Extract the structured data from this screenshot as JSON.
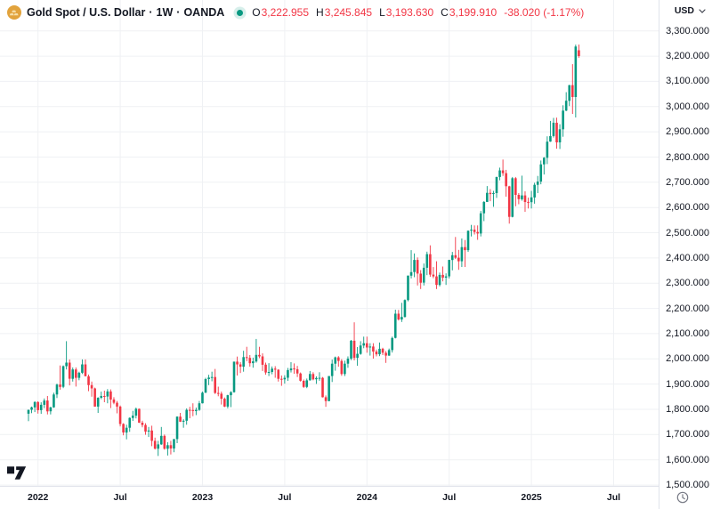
{
  "header": {
    "symbol_title": "Gold Spot / U.S. Dollar",
    "separator": "·",
    "interval": "1W",
    "exchange": "OANDA",
    "ohlc": {
      "open_label": "O",
      "open": "3,222.955",
      "high_label": "H",
      "high": "3,245.845",
      "low_label": "L",
      "low": "3,193.630",
      "close_label": "C",
      "close": "3,199.910",
      "change": "-38.020 (-1.17%)"
    }
  },
  "price_axis": {
    "currency": "USD",
    "labels": [
      "3,300.000",
      "3,200.000",
      "3,100.000",
      "3,000.000",
      "2,900.000",
      "2,800.000",
      "2,700.000",
      "2,600.000",
      "2,500.000",
      "2,400.000",
      "2,300.000",
      "2,200.000",
      "2,100.000",
      "2,000.000",
      "1,900.000",
      "1,800.000",
      "1,700.000",
      "1,600.000",
      "1,500.000"
    ]
  },
  "time_axis": {
    "ticks": [
      {
        "label": "2022",
        "week": 3
      },
      {
        "label": "Jul",
        "week": 29
      },
      {
        "label": "2023",
        "week": 55
      },
      {
        "label": "Jul",
        "week": 81
      },
      {
        "label": "2024",
        "week": 107
      },
      {
        "label": "Jul",
        "week": 133
      },
      {
        "label": "2025",
        "week": 159
      },
      {
        "label": "Jul",
        "week": 185
      }
    ]
  },
  "colors": {
    "up": "#089981",
    "down": "#F23645",
    "grid": "#eff1f4",
    "axis_line": "#e0e3eb",
    "axis_text": "#131722",
    "negative_text": "#F23645",
    "symbol_icon_gold": "#E2A33C",
    "status_open": "#089981"
  },
  "chart_data": {
    "type": "candlestick",
    "title": "Gold Spot / U.S. Dollar · 1W · OANDA",
    "interval": "1W",
    "x_axis_tick_labels": [
      "2022",
      "Jul",
      "2023",
      "Jul",
      "2024",
      "Jul",
      "2025",
      "Jul"
    ],
    "y_axis_range": [
      1500,
      3300
    ],
    "y_grid_step": 100,
    "first_candle_week": "mid-Dec 2021",
    "last_candle": {
      "open": 3222.955,
      "high": 3245.845,
      "low": 3193.63,
      "close": 3199.91,
      "change": -38.02,
      "change_pct": -1.17
    },
    "candles": [
      [
        1783,
        1799,
        1753,
        1798
      ],
      [
        1798,
        1811,
        1785,
        1808
      ],
      [
        1808,
        1832,
        1789,
        1829
      ],
      [
        1829,
        1832,
        1783,
        1797
      ],
      [
        1797,
        1828,
        1782,
        1818
      ],
      [
        1818,
        1843,
        1805,
        1835
      ],
      [
        1835,
        1853,
        1780,
        1792
      ],
      [
        1792,
        1810,
        1780,
        1808
      ],
      [
        1808,
        1866,
        1806,
        1859
      ],
      [
        1859,
        1902,
        1845,
        1898
      ],
      [
        1898,
        1974,
        1878,
        1889
      ],
      [
        1889,
        1974,
        1884,
        1971
      ],
      [
        1971,
        2070,
        1958,
        1985
      ],
      [
        1985,
        1998,
        1895,
        1921
      ],
      [
        1921,
        1966,
        1910,
        1958
      ],
      [
        1958,
        1966,
        1890,
        1925
      ],
      [
        1925,
        1949,
        1915,
        1945
      ],
      [
        1945,
        1998,
        1940,
        1978
      ],
      [
        1978,
        1998,
        1931,
        1931
      ],
      [
        1931,
        1938,
        1872,
        1896
      ],
      [
        1896,
        1910,
        1850,
        1883
      ],
      [
        1883,
        1886,
        1810,
        1811
      ],
      [
        1811,
        1848,
        1786,
        1846
      ],
      [
        1846,
        1870,
        1840,
        1853
      ],
      [
        1853,
        1874,
        1828,
        1851
      ],
      [
        1851,
        1880,
        1824,
        1871
      ],
      [
        1871,
        1879,
        1805,
        1839
      ],
      [
        1839,
        1848,
        1820,
        1826
      ],
      [
        1826,
        1833,
        1784,
        1811
      ],
      [
        1811,
        1815,
        1732,
        1742
      ],
      [
        1742,
        1745,
        1697,
        1708
      ],
      [
        1708,
        1739,
        1681,
        1727
      ],
      [
        1727,
        1768,
        1711,
        1766
      ],
      [
        1766,
        1794,
        1754,
        1775
      ],
      [
        1775,
        1807,
        1764,
        1802
      ],
      [
        1802,
        1803,
        1746,
        1747
      ],
      [
        1747,
        1755,
        1729,
        1738
      ],
      [
        1738,
        1745,
        1699,
        1712
      ],
      [
        1712,
        1730,
        1690,
        1716
      ],
      [
        1716,
        1735,
        1654,
        1675
      ],
      [
        1675,
        1688,
        1641,
        1644
      ],
      [
        1644,
        1675,
        1615,
        1661
      ],
      [
        1661,
        1730,
        1659,
        1695
      ],
      [
        1695,
        1700,
        1640,
        1644
      ],
      [
        1644,
        1670,
        1617,
        1658
      ],
      [
        1658,
        1675,
        1621,
        1645
      ],
      [
        1645,
        1683,
        1630,
        1682
      ],
      [
        1682,
        1772,
        1666,
        1771
      ],
      [
        1771,
        1786,
        1750,
        1751
      ],
      [
        1751,
        1761,
        1727,
        1755
      ],
      [
        1755,
        1804,
        1739,
        1798
      ],
      [
        1798,
        1810,
        1765,
        1797
      ],
      [
        1797,
        1824,
        1773,
        1793
      ],
      [
        1793,
        1807,
        1777,
        1798
      ],
      [
        1798,
        1833,
        1794,
        1824
      ],
      [
        1824,
        1870,
        1823,
        1866
      ],
      [
        1866,
        1925,
        1865,
        1920
      ],
      [
        1920,
        1937,
        1896,
        1926
      ],
      [
        1926,
        1949,
        1911,
        1928
      ],
      [
        1928,
        1960,
        1861,
        1865
      ],
      [
        1865,
        1890,
        1852,
        1862
      ],
      [
        1862,
        1870,
        1819,
        1842
      ],
      [
        1842,
        1847,
        1809,
        1811
      ],
      [
        1811,
        1858,
        1804,
        1856
      ],
      [
        1856,
        1872,
        1809,
        1868
      ],
      [
        1868,
        1989,
        1866,
        1989
      ],
      [
        1989,
        2009,
        1934,
        1978
      ],
      [
        1978,
        1987,
        1944,
        1969
      ],
      [
        1969,
        2032,
        1949,
        2007
      ],
      [
        2007,
        2048,
        1991,
        2004
      ],
      [
        2004,
        2015,
        1969,
        1983
      ],
      [
        1983,
        2005,
        1965,
        1990
      ],
      [
        1990,
        2079,
        1985,
        2016
      ],
      [
        2016,
        2048,
        2003,
        2010
      ],
      [
        2010,
        2022,
        1952,
        1977
      ],
      [
        1977,
        1985,
        1937,
        1946
      ],
      [
        1946,
        1983,
        1932,
        1948
      ],
      [
        1948,
        1970,
        1939,
        1961
      ],
      [
        1961,
        1971,
        1925,
        1957
      ],
      [
        1957,
        1959,
        1910,
        1921
      ],
      [
        1921,
        1934,
        1893,
        1919
      ],
      [
        1919,
        1935,
        1902,
        1925
      ],
      [
        1925,
        1964,
        1913,
        1955
      ],
      [
        1955,
        1987,
        1946,
        1962
      ],
      [
        1962,
        1982,
        1941,
        1959
      ],
      [
        1959,
        1972,
        1928,
        1942
      ],
      [
        1942,
        1946,
        1910,
        1913
      ],
      [
        1913,
        1918,
        1885,
        1889
      ],
      [
        1889,
        1922,
        1884,
        1915
      ],
      [
        1915,
        1952,
        1914,
        1940
      ],
      [
        1940,
        1947,
        1915,
        1919
      ],
      [
        1919,
        1931,
        1901,
        1924
      ],
      [
        1924,
        1947,
        1913,
        1925
      ],
      [
        1925,
        1928,
        1847,
        1848
      ],
      [
        1848,
        1855,
        1810,
        1833
      ],
      [
        1833,
        1932,
        1832,
        1932
      ],
      [
        1932,
        1997,
        1908,
        1981
      ],
      [
        1981,
        2009,
        1953,
        2006
      ],
      [
        2006,
        2011,
        1969,
        1992
      ],
      [
        1992,
        1999,
        1933,
        1940
      ],
      [
        1940,
        1993,
        1932,
        1981
      ],
      [
        1981,
        2010,
        1965,
        2001
      ],
      [
        2001,
        2075,
        1995,
        2072
      ],
      [
        2072,
        2145,
        1994,
        2004
      ],
      [
        2004,
        2047,
        1973,
        2020
      ],
      [
        2020,
        2070,
        2016,
        2053
      ],
      [
        2053,
        2088,
        2042,
        2062
      ],
      [
        2062,
        2088,
        2024,
        2045
      ],
      [
        2045,
        2062,
        2013,
        2049
      ],
      [
        2049,
        2062,
        2001,
        2029
      ],
      [
        2029,
        2037,
        2010,
        2018
      ],
      [
        2018,
        2065,
        2011,
        2040
      ],
      [
        2040,
        2044,
        2015,
        2024
      ],
      [
        2024,
        2031,
        1984,
        2013
      ],
      [
        2013,
        2041,
        2012,
        2035
      ],
      [
        2035,
        2088,
        2025,
        2083
      ],
      [
        2083,
        2195,
        2081,
        2179
      ],
      [
        2179,
        2194,
        2152,
        2156
      ],
      [
        2156,
        2222,
        2146,
        2166
      ],
      [
        2166,
        2236,
        2164,
        2233
      ],
      [
        2233,
        2330,
        2228,
        2330
      ],
      [
        2330,
        2431,
        2319,
        2344
      ],
      [
        2344,
        2418,
        2324,
        2392
      ],
      [
        2392,
        2402,
        2291,
        2338
      ],
      [
        2338,
        2352,
        2277,
        2302
      ],
      [
        2302,
        2378,
        2291,
        2361
      ],
      [
        2361,
        2425,
        2332,
        2415
      ],
      [
        2415,
        2450,
        2325,
        2334
      ],
      [
        2334,
        2364,
        2320,
        2327
      ],
      [
        2327,
        2387,
        2277,
        2293
      ],
      [
        2293,
        2342,
        2287,
        2333
      ],
      [
        2333,
        2366,
        2307,
        2322
      ],
      [
        2322,
        2339,
        2293,
        2327
      ],
      [
        2327,
        2393,
        2319,
        2392
      ],
      [
        2392,
        2424,
        2351,
        2411
      ],
      [
        2411,
        2483,
        2396,
        2401
      ],
      [
        2401,
        2432,
        2353,
        2387
      ],
      [
        2387,
        2477,
        2364,
        2443
      ],
      [
        2443,
        2471,
        2364,
        2431
      ],
      [
        2431,
        2509,
        2424,
        2508
      ],
      [
        2508,
        2531,
        2485,
        2512
      ],
      [
        2512,
        2529,
        2493,
        2503
      ],
      [
        2503,
        2529,
        2472,
        2497
      ],
      [
        2497,
        2586,
        2485,
        2577
      ],
      [
        2577,
        2625,
        2546,
        2622
      ],
      [
        2622,
        2685,
        2622,
        2658
      ],
      [
        2658,
        2673,
        2625,
        2653
      ],
      [
        2653,
        2666,
        2603,
        2657
      ],
      [
        2657,
        2722,
        2638,
        2721
      ],
      [
        2721,
        2758,
        2708,
        2747
      ],
      [
        2747,
        2790,
        2725,
        2736
      ],
      [
        2736,
        2749,
        2643,
        2684
      ],
      [
        2684,
        2686,
        2536,
        2563
      ],
      [
        2563,
        2721,
        2561,
        2716
      ],
      [
        2716,
        2721,
        2605,
        2650
      ],
      [
        2650,
        2657,
        2613,
        2633
      ],
      [
        2633,
        2726,
        2627,
        2648
      ],
      [
        2648,
        2664,
        2583,
        2622
      ],
      [
        2622,
        2639,
        2596,
        2621
      ],
      [
        2621,
        2666,
        2596,
        2640
      ],
      [
        2640,
        2698,
        2615,
        2690
      ],
      [
        2690,
        2725,
        2657,
        2703
      ],
      [
        2703,
        2786,
        2692,
        2771
      ],
      [
        2771,
        2800,
        2731,
        2797
      ],
      [
        2797,
        2882,
        2772,
        2861
      ],
      [
        2861,
        2943,
        2860,
        2883
      ],
      [
        2883,
        2955,
        2877,
        2936
      ],
      [
        2936,
        2956,
        2833,
        2858
      ],
      [
        2858,
        2930,
        2832,
        2910
      ],
      [
        2910,
        3005,
        2880,
        2984
      ],
      [
        2984,
        3057,
        2982,
        3023
      ],
      [
        3023,
        3086,
        3002,
        3085
      ],
      [
        3085,
        3168,
        2971,
        3038
      ],
      [
        3038,
        3245.5,
        2957,
        3238
      ],
      [
        3222.955,
        3245.845,
        3193.63,
        3199.91
      ]
    ]
  }
}
